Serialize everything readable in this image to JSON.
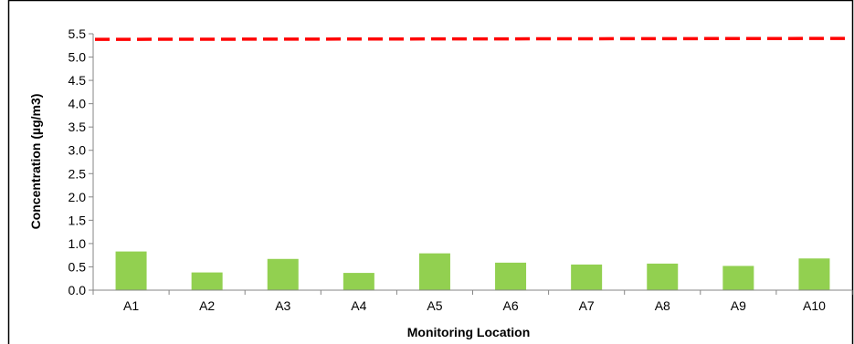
{
  "chart_data": {
    "type": "bar",
    "title": "",
    "xlabel": "Monitoring Location",
    "ylabel": "Concentration (µg/m3)",
    "categories": [
      "A1",
      "A2",
      "A3",
      "A4",
      "A5",
      "A6",
      "A7",
      "A8",
      "A9",
      "A10"
    ],
    "series": [
      {
        "values": [
          0.83,
          0.38,
          0.67,
          0.37,
          0.79,
          0.59,
          0.55,
          0.57,
          0.52,
          0.68
        ],
        "color": "#92d050"
      }
    ],
    "reference_line": {
      "y_start": 5.38,
      "y_end": 5.4,
      "color": "#ff0000",
      "style": "dashed"
    },
    "ylim": [
      0,
      5.5
    ],
    "yticks": [
      "0.0",
      "0.5",
      "1.0",
      "1.5",
      "2.0",
      "2.5",
      "3.0",
      "3.5",
      "4.0",
      "4.5",
      "5.0",
      "5.5"
    ],
    "grid": false,
    "legend": "none"
  }
}
